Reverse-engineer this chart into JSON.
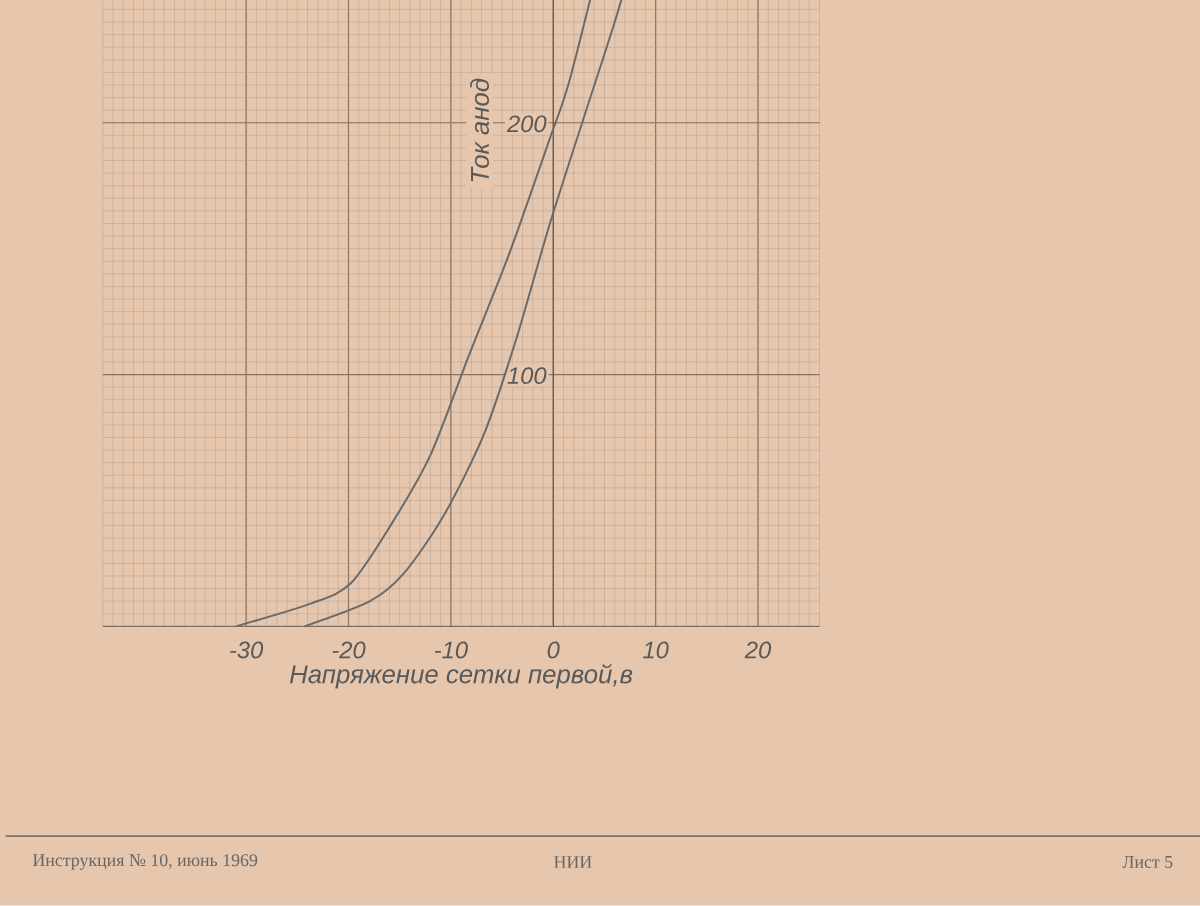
{
  "chart_data": {
    "type": "line",
    "xlabel": "Напряжение сетки первой,в",
    "ylabel": "Ток анод",
    "xlim": [
      -44,
      26
    ],
    "ylim": [
      0,
      272
    ],
    "xticks": [
      -30,
      -20,
      -10,
      0,
      10,
      20
    ],
    "yticks": [
      100,
      200
    ],
    "grid": true,
    "series": [
      {
        "color": "#6a6a6a",
        "x": [
          -31,
          -23.7,
          -19.8,
          -15.9,
          -12,
          -8.2,
          -4.3,
          -0.4,
          1.6,
          5
        ],
        "values": [
          0,
          9,
          17,
          40,
          68,
          108,
          148,
          193,
          217,
          272
        ]
      },
      {
        "color": "#6a6a6a",
        "x": [
          -24.3,
          -17.9,
          -14.6,
          -10.7,
          -6.8,
          -3.7,
          -0.4,
          2.9,
          6,
          8.3
        ],
        "values": [
          0,
          10,
          21,
          44,
          76,
          113,
          159,
          201,
          240,
          272
        ]
      }
    ],
    "annotations": [
      "Инструкция № 10, июнь 1969",
      "НИИ",
      "Лист 5"
    ]
  }
}
